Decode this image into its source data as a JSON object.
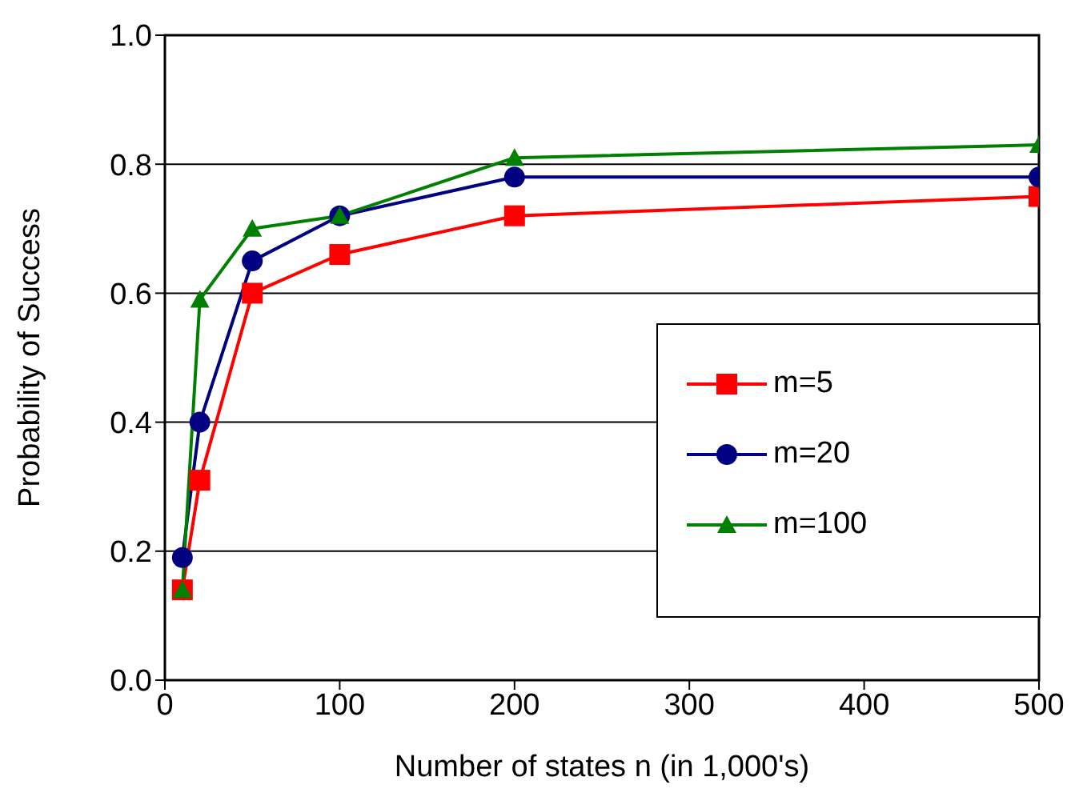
{
  "chart_data": {
    "type": "line",
    "xlabel": "Number of states n (in 1,000's)",
    "ylabel": "Probability of Success",
    "x": [
      10,
      20,
      50,
      100,
      200,
      500
    ],
    "series": [
      {
        "name": "m=5",
        "color": "#ff0000",
        "values": [
          0.14,
          0.31,
          0.6,
          0.66,
          0.72,
          0.75
        ],
        "marker": "square"
      },
      {
        "name": "m=20",
        "color": "#000080",
        "values": [
          0.19,
          0.4,
          0.65,
          0.72,
          0.78,
          0.78
        ],
        "marker": "circle"
      },
      {
        "name": "m=100",
        "color": "#008000",
        "values": [
          0.14,
          0.59,
          0.7,
          0.72,
          0.81,
          0.83
        ],
        "marker": "triangle"
      }
    ],
    "xlim": [
      0,
      500
    ],
    "xticks": [
      0,
      100,
      200,
      300,
      400,
      500
    ],
    "ylim": [
      0,
      1
    ],
    "yticks": [
      {
        "value": 0,
        "label": "0.0"
      },
      {
        "value": 0.2,
        "label": "0.2"
      },
      {
        "value": 0.4,
        "label": "0.4"
      },
      {
        "value": 0.6,
        "label": "0.6"
      },
      {
        "value": 0.8,
        "label": "0.8"
      },
      {
        "value": 1,
        "label": "1.0"
      }
    ],
    "grid": "y",
    "legend": "bottom right",
    "line_style": "solid"
  }
}
